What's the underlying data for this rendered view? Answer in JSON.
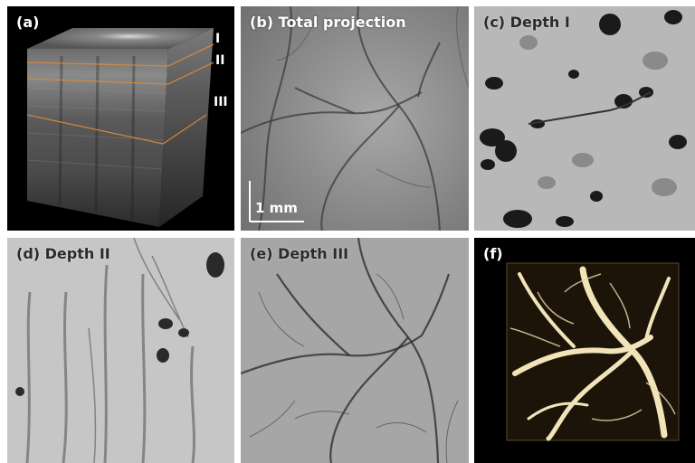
{
  "panels": {
    "a": {
      "label": "(a)",
      "depth_markers": [
        "I",
        "II",
        "III"
      ]
    },
    "b": {
      "label": "(b) Total projection",
      "scale_bar": "1 mm"
    },
    "c": {
      "label": "(c) Depth I"
    },
    "d": {
      "label": "(d) Depth II"
    },
    "e": {
      "label": "(e) Depth III"
    },
    "f": {
      "label": "(f)"
    }
  },
  "colors": {
    "background": "#ffffff",
    "panel_a_bg": "#000000",
    "depth_line": "#d98a3a",
    "vessel_render": "#f2e4b8",
    "grey_tissue": "#9a9a9a"
  }
}
